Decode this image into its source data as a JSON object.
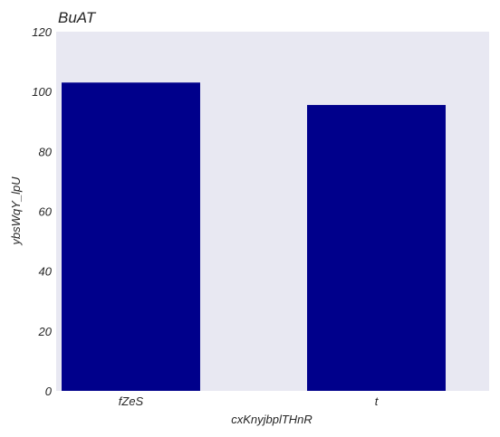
{
  "chart_data": {
    "type": "bar",
    "title": "BuAT",
    "xlabel": "cxKnyjbplTHnR",
    "ylabel": "ybsWqY_lpU",
    "categories": [
      "fZeS",
      "t"
    ],
    "values": [
      103,
      95.5
    ],
    "ylim": [
      0,
      120
    ],
    "yticks": [
      0,
      20,
      40,
      60,
      80,
      100,
      120
    ],
    "grid": false,
    "legend": "none",
    "colors": {
      "bar": "#00008b",
      "plot_background": "#e8e8f2",
      "text": "#262626"
    }
  }
}
